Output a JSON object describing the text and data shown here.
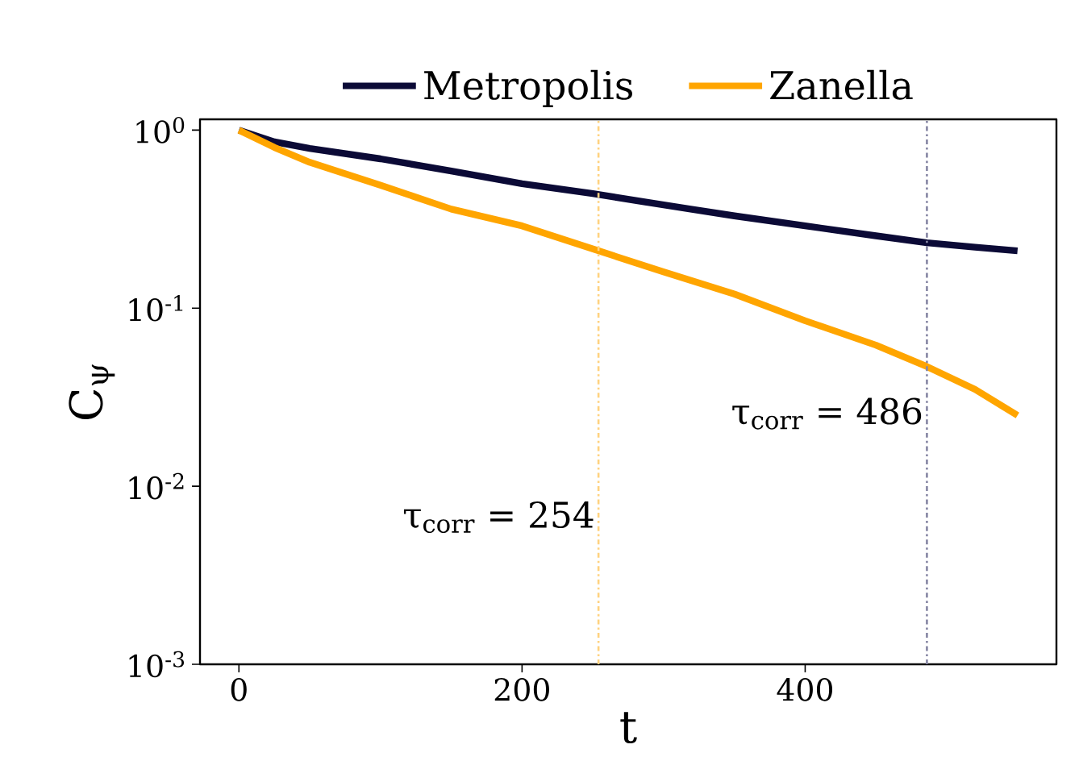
{
  "chart_data": {
    "type": "line",
    "xlabel": "t",
    "ylabel": "C$_{ψ}$",
    "log": "y",
    "legend": "top",
    "grid": false,
    "marker": "none",
    "line_style": "solid",
    "xlim": [
      -27.5,
      577.5
    ],
    "xticks": [
      0,
      200,
      400
    ],
    "ylim": [
      0.001,
      1.15
    ],
    "yticks": [
      {
        "value": 1,
        "label": "10$^{0}$"
      },
      {
        "value": 0.1,
        "label": "10$^{-1}$"
      },
      {
        "value": 0.01,
        "label": "10$^{-2}$"
      },
      {
        "value": 0.001,
        "label": "10$^{-3}$"
      }
    ],
    "x": [
      0,
      25,
      50,
      100,
      150,
      200,
      250,
      300,
      350,
      400,
      450,
      486,
      520,
      550
    ],
    "series": [
      {
        "name": "Metropolis",
        "color": "#0b0a36",
        "values": [
          1,
          0.86,
          0.79,
          0.69,
          0.59,
          0.5,
          0.44,
          0.38,
          0.33,
          0.29,
          0.255,
          0.233,
          0.22,
          0.21
        ]
      },
      {
        "name": "Zanella",
        "color": "#ffa500",
        "values": [
          1,
          0.8,
          0.66,
          0.49,
          0.36,
          0.29,
          0.215,
          0.16,
          0.12,
          0.085,
          0.062,
          0.047,
          0.035,
          0.025
        ]
      }
    ],
    "ref_lines": [
      {
        "axis": "x",
        "value": 254,
        "label": "τ$_{corr}$ = 254",
        "color": "#ffd27f",
        "line_style": "dashdot"
      },
      {
        "axis": "x",
        "value": 486,
        "label": "τ$_{corr}$ = 486",
        "color": "#8585a3",
        "line_style": "dashdot"
      }
    ]
  }
}
